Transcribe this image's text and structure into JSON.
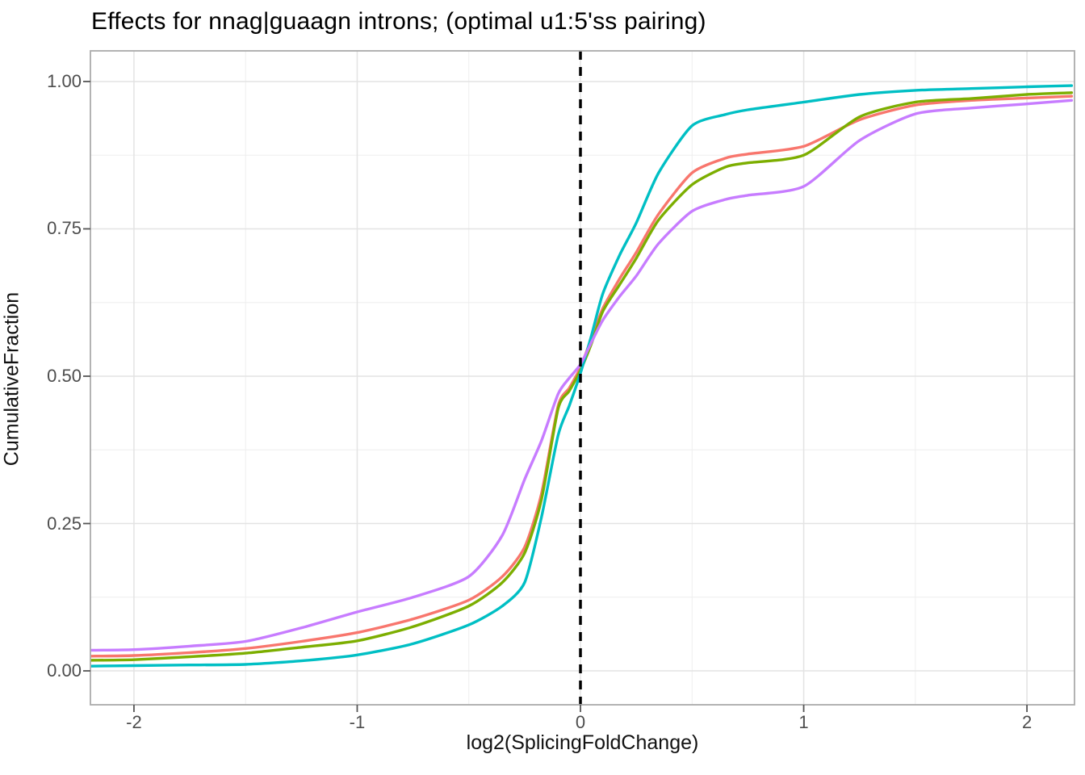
{
  "title": "Effects for nnag|guaagn introns; (optimal u1:5'ss pairing)",
  "axes": {
    "x": {
      "label": "log2(SplicingFoldChange)",
      "tick_labels": [
        "-2",
        "-1",
        "0",
        "1",
        "2"
      ],
      "tick_values": [
        -2,
        -1,
        0,
        1,
        2
      ],
      "minor_tick_values": [
        -1.5,
        -0.5,
        0.5,
        1.5
      ],
      "range": [
        -2.195,
        2.213
      ]
    },
    "y": {
      "label": "CumulativeFraction",
      "tick_labels": [
        "0.00",
        "0.25",
        "0.50",
        "0.75",
        "1.00"
      ],
      "tick_values": [
        0,
        0.25,
        0.5,
        0.75,
        1
      ],
      "minor_tick_values": [
        0.125,
        0.375,
        0.625,
        0.875
      ],
      "range": [
        -0.0575,
        1.052
      ]
    }
  },
  "chart_data": {
    "type": "line",
    "title": "Effects for nnag|guaagn introns; (optimal u1:5'ss pairing)",
    "xlabel": "log2(SplicingFoldChange)",
    "ylabel": "CumulativeFraction",
    "xlim": [
      -2.195,
      2.213
    ],
    "ylim": [
      -0.0575,
      1.052
    ],
    "grid": true,
    "legend_position": "none",
    "reference_line": {
      "orientation": "vertical",
      "x": 0,
      "style": "dashed",
      "color": "#000000"
    },
    "x": [
      -2.2,
      -2.0,
      -1.75,
      -1.5,
      -1.25,
      -1.0,
      -0.75,
      -0.5,
      -0.35,
      -0.25,
      -0.175,
      -0.1,
      -0.05,
      0,
      0.05,
      0.1,
      0.175,
      0.25,
      0.35,
      0.5,
      0.65,
      0.75,
      1.0,
      1.25,
      1.5,
      1.75,
      2.0,
      2.2
    ],
    "series": [
      {
        "name": "salmon-curve",
        "color": "#F8766D",
        "values": [
          0.025,
          0.026,
          0.031,
          0.038,
          0.05,
          0.065,
          0.088,
          0.12,
          0.16,
          0.21,
          0.3,
          0.45,
          0.48,
          0.515,
          0.565,
          0.615,
          0.665,
          0.71,
          0.775,
          0.845,
          0.87,
          0.877,
          0.89,
          0.935,
          0.96,
          0.968,
          0.972,
          0.975
        ]
      },
      {
        "name": "green-curve",
        "color": "#7CAE00",
        "values": [
          0.018,
          0.019,
          0.024,
          0.03,
          0.04,
          0.051,
          0.075,
          0.11,
          0.15,
          0.2,
          0.29,
          0.445,
          0.475,
          0.51,
          0.556,
          0.61,
          0.655,
          0.7,
          0.765,
          0.825,
          0.855,
          0.862,
          0.875,
          0.94,
          0.965,
          0.971,
          0.978,
          0.981
        ]
      },
      {
        "name": "teal-curve",
        "color": "#00BFC4",
        "values": [
          0.008,
          0.009,
          0.01,
          0.011,
          0.017,
          0.027,
          0.046,
          0.078,
          0.11,
          0.15,
          0.26,
          0.4,
          0.45,
          0.505,
          0.57,
          0.64,
          0.705,
          0.76,
          0.845,
          0.925,
          0.944,
          0.952,
          0.965,
          0.978,
          0.985,
          0.988,
          0.991,
          0.993
        ]
      },
      {
        "name": "purple-curve",
        "color": "#C77CFF",
        "values": [
          0.035,
          0.036,
          0.042,
          0.05,
          0.073,
          0.1,
          0.125,
          0.16,
          0.23,
          0.325,
          0.39,
          0.47,
          0.497,
          0.52,
          0.558,
          0.595,
          0.635,
          0.67,
          0.725,
          0.78,
          0.8,
          0.807,
          0.822,
          0.9,
          0.945,
          0.955,
          0.962,
          0.968
        ]
      }
    ]
  },
  "style": {
    "panel_border_color": "#ababab",
    "major_grid_color": "#e3e3e3",
    "minor_grid_color": "#eeeeee",
    "tick_mark_color": "#555555",
    "tick_label_color": "#4d4d4d",
    "background_color": "#ffffff",
    "curve_width": 3.4
  }
}
